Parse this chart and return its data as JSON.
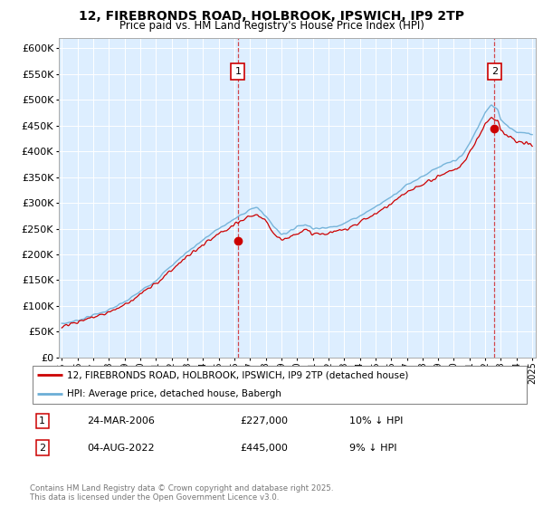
{
  "title1": "12, FIREBRONDS ROAD, HOLBROOK, IPSWICH, IP9 2TP",
  "title2": "Price paid vs. HM Land Registry's House Price Index (HPI)",
  "ylim": [
    0,
    620000
  ],
  "ytick_vals": [
    0,
    50000,
    100000,
    150000,
    200000,
    250000,
    300000,
    350000,
    400000,
    450000,
    500000,
    550000,
    600000
  ],
  "xmin_year": 1995,
  "xmax_year": 2025,
  "xticks": [
    1995,
    1996,
    1997,
    1998,
    1999,
    2000,
    2001,
    2002,
    2003,
    2004,
    2005,
    2006,
    2007,
    2008,
    2009,
    2010,
    2011,
    2012,
    2013,
    2014,
    2015,
    2016,
    2017,
    2018,
    2019,
    2020,
    2021,
    2022,
    2023,
    2024,
    2025
  ],
  "hpi_color": "#6baed6",
  "price_color": "#cc0000",
  "bg_color": "#ddeeff",
  "purchase1_x": 2006.23,
  "purchase1_y": 227000,
  "purchase2_x": 2022.59,
  "purchase2_y": 445000,
  "vline_color": "#cc0000",
  "legend_label1": "12, FIREBRONDS ROAD, HOLBROOK, IPSWICH, IP9 2TP (detached house)",
  "legend_label2": "HPI: Average price, detached house, Babergh",
  "annotation1_label": "1",
  "annotation2_label": "2",
  "table_row1": [
    "1",
    "24-MAR-2006",
    "£227,000",
    "10% ↓ HPI"
  ],
  "table_row2": [
    "2",
    "04-AUG-2022",
    "£445,000",
    "9% ↓ HPI"
  ],
  "footer": "Contains HM Land Registry data © Crown copyright and database right 2025.\nThis data is licensed under the Open Government Licence v3.0."
}
